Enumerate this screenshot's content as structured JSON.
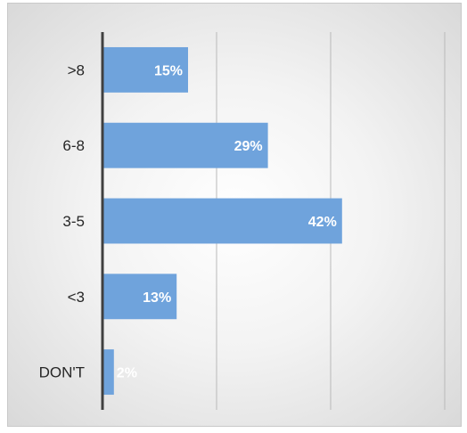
{
  "chart_data": {
    "type": "bar",
    "orientation": "horizontal",
    "categories": [
      ">8",
      "6-8",
      "3-5",
      "<3",
      "DON'T"
    ],
    "values": [
      15,
      29,
      42,
      13,
      2
    ],
    "value_labels": [
      "15%",
      "29%",
      "42%",
      "13%",
      "2%"
    ],
    "title": "",
    "xlabel": "",
    "ylabel": "",
    "xlim": [
      0,
      60
    ],
    "grid": true,
    "bar_color": "#6fa3dc",
    "axis_color": "#404040",
    "gridline_color": "#b9b9b9"
  }
}
